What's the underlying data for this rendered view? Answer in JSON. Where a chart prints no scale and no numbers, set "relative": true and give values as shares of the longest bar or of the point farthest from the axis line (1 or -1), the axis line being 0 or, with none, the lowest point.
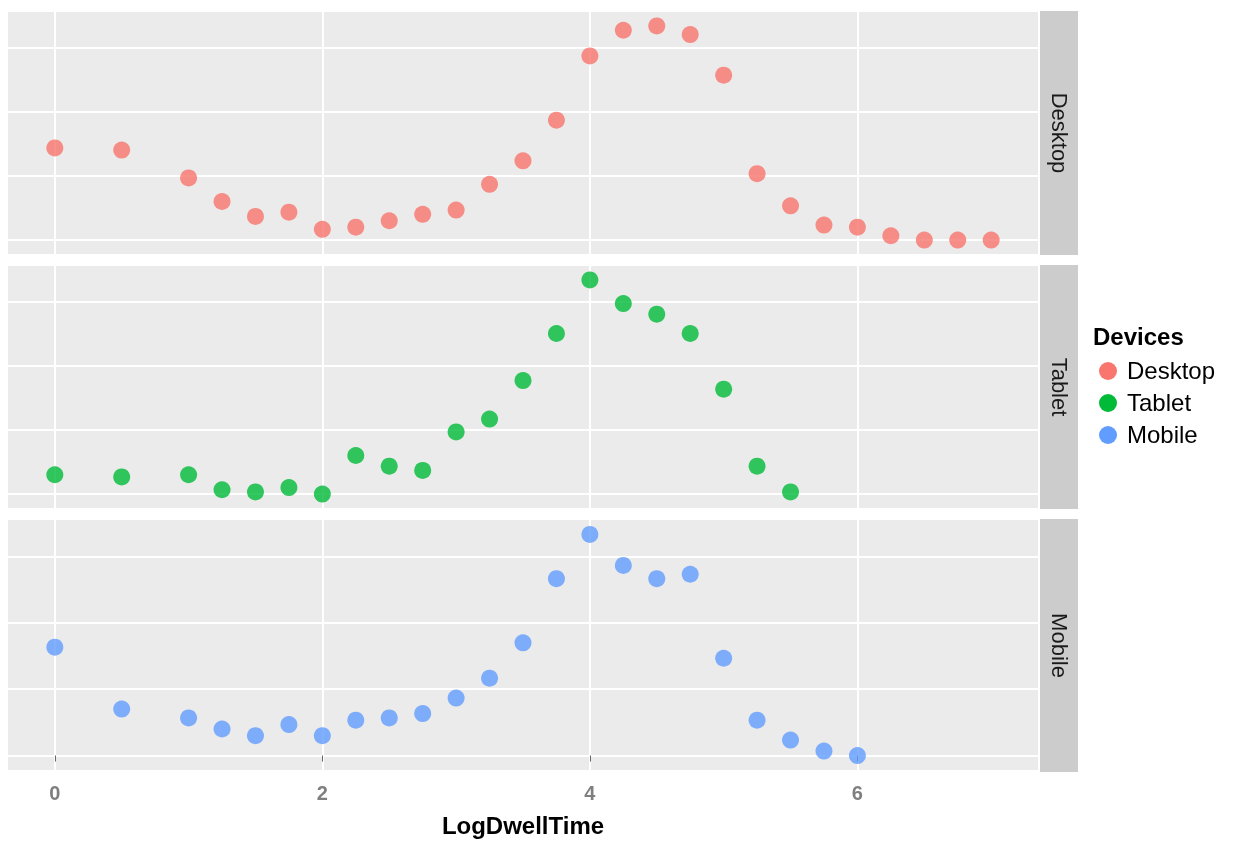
{
  "chart_data": [
    {
      "type": "scatter",
      "relative": true,
      "legend": "right",
      "legend_title": "Devices",
      "marker": "circle",
      "grid": true,
      "tick_labels": false,
      "xlim": [
        -0.35,
        7.35
      ],
      "xticks": [
        0,
        2,
        4,
        6
      ],
      "series": [
        {
          "name": "Desktop",
          "color": "#f8766d",
          "x": [
            0,
            0.5,
            1,
            1.25,
            1.5,
            1.75,
            2,
            2.25,
            2.5,
            2.75,
            3,
            3.25,
            3.5,
            3.75,
            4,
            4.25,
            4.5,
            4.75,
            5,
            5.25,
            5.5,
            5.75,
            6,
            6.25,
            6.5,
            6.75,
            7
          ],
          "values": [
            0.43,
            0.42,
            0.29,
            0.18,
            0.11,
            0.13,
            0.05,
            0.06,
            0.09,
            0.12,
            0.14,
            0.26,
            0.37,
            0.56,
            0.86,
            0.98,
            1,
            0.96,
            0.77,
            0.31,
            0.16,
            0.07,
            0.06,
            0.02,
            0,
            0,
            0
          ]
        }
      ]
    },
    {
      "type": "scatter",
      "relative": true,
      "legend": "right",
      "marker": "circle",
      "grid": true,
      "tick_labels": false,
      "xlim": [
        -0.35,
        7.35
      ],
      "xticks": [
        0,
        2,
        4,
        6
      ],
      "series": [
        {
          "name": "Tablet",
          "color": "#00ba38",
          "x": [
            0,
            0.5,
            1,
            1.25,
            1.5,
            1.75,
            2,
            2.25,
            2.5,
            2.75,
            3,
            3.25,
            3.5,
            3.75,
            4,
            4.25,
            4.5,
            4.75,
            5,
            5.25,
            5.5
          ],
          "values": [
            0.09,
            0.08,
            0.09,
            0.02,
            0.01,
            0.03,
            0,
            0.18,
            0.13,
            0.11,
            0.29,
            0.35,
            0.53,
            0.75,
            1,
            0.89,
            0.84,
            0.75,
            0.49,
            0.13,
            0.01
          ]
        }
      ]
    },
    {
      "type": "scatter",
      "relative": true,
      "legend": "right",
      "marker": "circle",
      "grid": true,
      "tick_labels": "x",
      "xlabel": "LogDwellTime",
      "xlim": [
        -0.35,
        7.35
      ],
      "xticks": [
        0,
        2,
        4,
        6
      ],
      "series": [
        {
          "name": "Mobile",
          "color": "#619cff",
          "x": [
            0,
            0.5,
            1,
            1.25,
            1.5,
            1.75,
            2,
            2.25,
            2.5,
            2.75,
            3,
            3.25,
            3.5,
            3.75,
            4,
            4.25,
            4.5,
            4.75,
            5,
            5.25,
            5.5,
            5.75,
            6
          ],
          "values": [
            0.49,
            0.21,
            0.17,
            0.12,
            0.09,
            0.14,
            0.09,
            0.16,
            0.17,
            0.19,
            0.26,
            0.35,
            0.51,
            0.8,
            1,
            0.86,
            0.8,
            0.82,
            0.44,
            0.16,
            0.07,
            0.02,
            0
          ]
        }
      ]
    }
  ]
}
